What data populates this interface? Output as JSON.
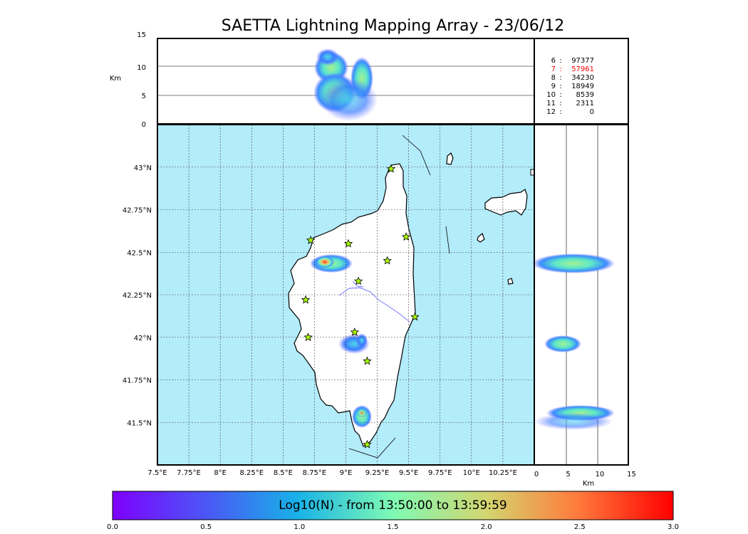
{
  "title": "SAETTA Lightning Mapping Array - 23/06/12",
  "altitude_panel": {
    "unit_label": "Km",
    "ticks": [
      "15",
      "10",
      "5",
      "0"
    ]
  },
  "map": {
    "lon_ticks": [
      "7.5°E",
      "7.75°E",
      "8°E",
      "8.25°E",
      "8.5°E",
      "8.75°E",
      "9°E",
      "9.25°E",
      "9.5°E",
      "9.75°E",
      "10°E",
      "10.25°E"
    ],
    "lat_ticks": [
      "43°N",
      "42.75°N",
      "42.5°N",
      "42.25°N",
      "42°N",
      "41.75°N",
      "41.5°N"
    ],
    "sea_color": "#b3ecfa",
    "land_color": "#ffffff",
    "stations": [
      {
        "lon": 9.36,
        "lat": 42.99
      },
      {
        "lon": 8.72,
        "lat": 42.57
      },
      {
        "lon": 9.02,
        "lat": 42.55
      },
      {
        "lon": 9.48,
        "lat": 42.59
      },
      {
        "lon": 9.33,
        "lat": 42.45
      },
      {
        "lon": 9.1,
        "lat": 42.33
      },
      {
        "lon": 8.68,
        "lat": 42.22
      },
      {
        "lon": 9.55,
        "lat": 42.12
      },
      {
        "lon": 8.7,
        "lat": 42.0
      },
      {
        "lon": 9.07,
        "lat": 42.03
      },
      {
        "lon": 9.17,
        "lat": 41.86
      },
      {
        "lon": 9.17,
        "lat": 41.37
      }
    ]
  },
  "right_panel": {
    "unit_label": "Km",
    "ticks": [
      "0",
      "5",
      "10",
      "15"
    ]
  },
  "stats": [
    {
      "label": "6",
      "value": "97377",
      "color": "#000000"
    },
    {
      "label": "7",
      "value": "57961",
      "color": "#ff0000"
    },
    {
      "label": "8",
      "value": "34230",
      "color": "#000000"
    },
    {
      "label": "9",
      "value": "18949",
      "color": "#000000"
    },
    {
      "label": "10",
      "value": "8539",
      "color": "#000000"
    },
    {
      "label": "11",
      "value": "2311",
      "color": "#000000"
    },
    {
      "label": "12",
      "value": "0",
      "color": "#000000"
    }
  ],
  "colorbar": {
    "title": "Log10(N) - from 13:50:00 to 13:59:59",
    "ticks": [
      "0.0",
      "0.5",
      "1.0",
      "1.5",
      "2.0",
      "2.5",
      "3.0"
    ]
  }
}
